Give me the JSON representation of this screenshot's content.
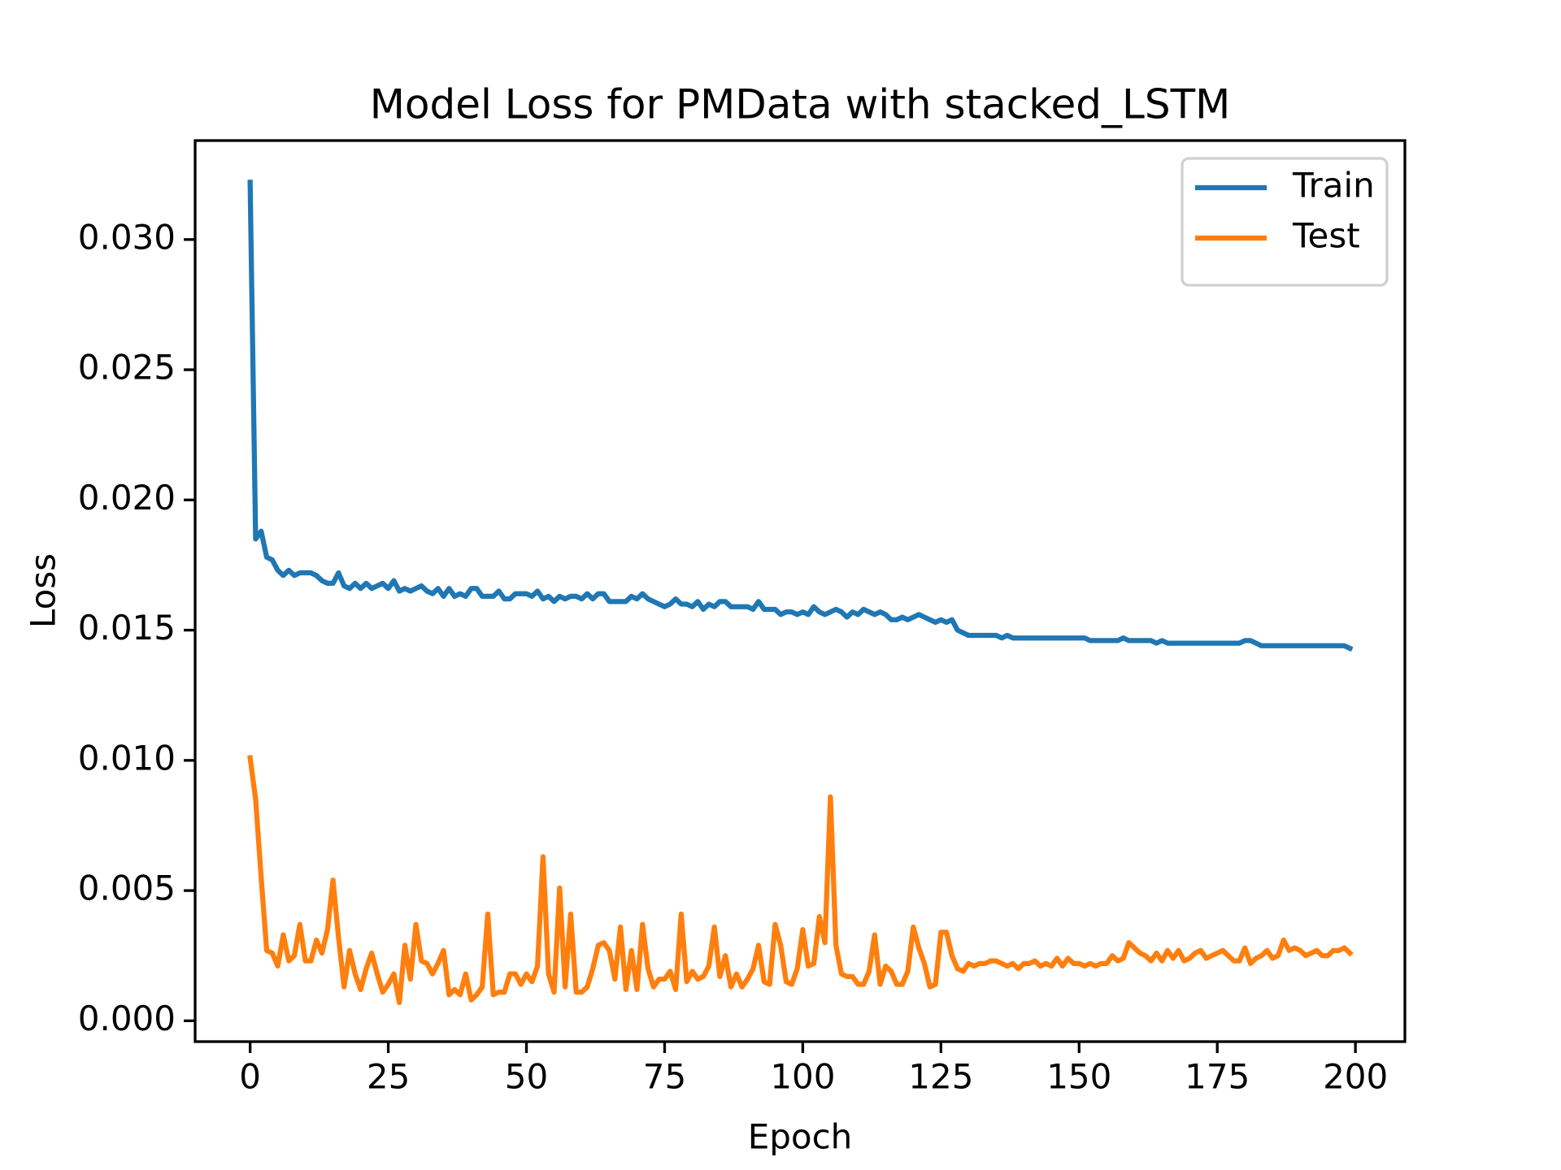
{
  "chart_data": {
    "type": "line",
    "title": "Model Loss for PMData with stacked_LSTM",
    "xlabel": "Epoch",
    "ylabel": "Loss",
    "x": [
      0,
      1,
      2,
      3,
      4,
      5,
      6,
      7,
      8,
      9,
      10,
      11,
      12,
      13,
      14,
      15,
      16,
      17,
      18,
      19,
      20,
      21,
      22,
      23,
      24,
      25,
      26,
      27,
      28,
      29,
      30,
      31,
      32,
      33,
      34,
      35,
      36,
      37,
      38,
      39,
      40,
      41,
      42,
      43,
      44,
      45,
      46,
      47,
      48,
      49,
      50,
      51,
      52,
      53,
      54,
      55,
      56,
      57,
      58,
      59,
      60,
      61,
      62,
      63,
      64,
      65,
      66,
      67,
      68,
      69,
      70,
      71,
      72,
      73,
      74,
      75,
      76,
      77,
      78,
      79,
      80,
      81,
      82,
      83,
      84,
      85,
      86,
      87,
      88,
      89,
      90,
      91,
      92,
      93,
      94,
      95,
      96,
      97,
      98,
      99,
      100,
      101,
      102,
      103,
      104,
      105,
      106,
      107,
      108,
      109,
      110,
      111,
      112,
      113,
      114,
      115,
      116,
      117,
      118,
      119,
      120,
      121,
      122,
      123,
      124,
      125,
      126,
      127,
      128,
      129,
      130,
      131,
      132,
      133,
      134,
      135,
      136,
      137,
      138,
      139,
      140,
      141,
      142,
      143,
      144,
      145,
      146,
      147,
      148,
      149,
      150,
      151,
      152,
      153,
      154,
      155,
      156,
      157,
      158,
      159,
      160,
      161,
      162,
      163,
      164,
      165,
      166,
      167,
      168,
      169,
      170,
      171,
      172,
      173,
      174,
      175,
      176,
      177,
      178,
      179,
      180,
      181,
      182,
      183,
      184,
      185,
      186,
      187,
      188,
      189,
      190,
      191,
      192,
      193,
      194,
      195,
      196,
      197,
      198,
      199
    ],
    "series": [
      {
        "name": "Train",
        "color": "#1f77b4",
        "values": [
          0.0322,
          0.0185,
          0.0188,
          0.0178,
          0.0177,
          0.0173,
          0.0171,
          0.0173,
          0.0171,
          0.0172,
          0.0172,
          0.0172,
          0.0171,
          0.0169,
          0.0168,
          0.0168,
          0.0172,
          0.0167,
          0.0166,
          0.0168,
          0.0166,
          0.0168,
          0.0166,
          0.0167,
          0.0168,
          0.0166,
          0.0169,
          0.0165,
          0.0166,
          0.0165,
          0.0166,
          0.0167,
          0.0165,
          0.0164,
          0.0166,
          0.0163,
          0.0166,
          0.0163,
          0.0164,
          0.0163,
          0.0166,
          0.0166,
          0.0163,
          0.0163,
          0.0163,
          0.0165,
          0.0162,
          0.0162,
          0.0164,
          0.0164,
          0.0164,
          0.0163,
          0.0165,
          0.0162,
          0.0163,
          0.0161,
          0.0163,
          0.0162,
          0.0163,
          0.0163,
          0.0162,
          0.0164,
          0.0162,
          0.0164,
          0.0164,
          0.0161,
          0.0161,
          0.0161,
          0.0161,
          0.0163,
          0.0162,
          0.0164,
          0.0162,
          0.0161,
          0.016,
          0.0159,
          0.016,
          0.0162,
          0.016,
          0.016,
          0.0159,
          0.0161,
          0.0158,
          0.016,
          0.0159,
          0.0161,
          0.0161,
          0.0159,
          0.0159,
          0.0159,
          0.0159,
          0.0158,
          0.0161,
          0.0158,
          0.0158,
          0.0158,
          0.0156,
          0.0157,
          0.0157,
          0.0156,
          0.0157,
          0.0156,
          0.0159,
          0.0157,
          0.0156,
          0.0157,
          0.0158,
          0.0157,
          0.0155,
          0.0157,
          0.0156,
          0.0158,
          0.0157,
          0.0156,
          0.0157,
          0.0156,
          0.0154,
          0.0154,
          0.0155,
          0.0154,
          0.0155,
          0.0156,
          0.0155,
          0.0154,
          0.0153,
          0.0154,
          0.0153,
          0.0154,
          0.015,
          0.0149,
          0.0148,
          0.0148,
          0.0148,
          0.0148,
          0.0148,
          0.0148,
          0.0147,
          0.0148,
          0.0147,
          0.0147,
          0.0147,
          0.0147,
          0.0147,
          0.0147,
          0.0147,
          0.0147,
          0.0147,
          0.0147,
          0.0147,
          0.0147,
          0.0147,
          0.0147,
          0.0146,
          0.0146,
          0.0146,
          0.0146,
          0.0146,
          0.0146,
          0.0147,
          0.0146,
          0.0146,
          0.0146,
          0.0146,
          0.0146,
          0.0145,
          0.0146,
          0.0145,
          0.0145,
          0.0145,
          0.0145,
          0.0145,
          0.0145,
          0.0145,
          0.0145,
          0.0145,
          0.0145,
          0.0145,
          0.0145,
          0.0145,
          0.0145,
          0.0146,
          0.0146,
          0.0145,
          0.0144,
          0.0144,
          0.0144,
          0.0144,
          0.0144,
          0.0144,
          0.0144,
          0.0144,
          0.0144,
          0.0144,
          0.0144,
          0.0144,
          0.0144,
          0.0144,
          0.0144,
          0.0144,
          0.0143
        ]
      },
      {
        "name": "Test",
        "color": "#ff7f0e",
        "values": [
          0.0101,
          0.0085,
          0.0055,
          0.0027,
          0.0026,
          0.0021,
          0.0033,
          0.0023,
          0.0025,
          0.0037,
          0.0023,
          0.0023,
          0.0031,
          0.0026,
          0.0035,
          0.0054,
          0.0032,
          0.0013,
          0.0027,
          0.0018,
          0.0012,
          0.002,
          0.0026,
          0.0018,
          0.0011,
          0.0014,
          0.0018,
          0.0007,
          0.0029,
          0.0016,
          0.0037,
          0.0023,
          0.0022,
          0.0018,
          0.0022,
          0.0027,
          0.001,
          0.0012,
          0.001,
          0.0018,
          0.0008,
          0.001,
          0.0013,
          0.0041,
          0.001,
          0.0011,
          0.0011,
          0.0018,
          0.0018,
          0.0014,
          0.0018,
          0.0015,
          0.0021,
          0.0063,
          0.0018,
          0.0011,
          0.0051,
          0.0013,
          0.0041,
          0.0011,
          0.0011,
          0.0013,
          0.002,
          0.0029,
          0.003,
          0.0027,
          0.0016,
          0.0036,
          0.0012,
          0.0027,
          0.0012,
          0.0037,
          0.002,
          0.0013,
          0.0016,
          0.0016,
          0.0019,
          0.0012,
          0.0041,
          0.0015,
          0.0019,
          0.0016,
          0.0017,
          0.0021,
          0.0036,
          0.0017,
          0.0025,
          0.0013,
          0.0018,
          0.0013,
          0.0016,
          0.002,
          0.0029,
          0.0015,
          0.0014,
          0.0037,
          0.0029,
          0.0015,
          0.0014,
          0.002,
          0.0035,
          0.0021,
          0.0022,
          0.004,
          0.003,
          0.0086,
          0.0029,
          0.0018,
          0.0017,
          0.0017,
          0.0014,
          0.0014,
          0.0019,
          0.0033,
          0.0014,
          0.0021,
          0.0019,
          0.0014,
          0.0014,
          0.0019,
          0.0036,
          0.0028,
          0.0022,
          0.0013,
          0.0014,
          0.0034,
          0.0034,
          0.0025,
          0.002,
          0.0019,
          0.0022,
          0.0021,
          0.0022,
          0.0022,
          0.0023,
          0.0023,
          0.0022,
          0.0021,
          0.0022,
          0.002,
          0.0022,
          0.0022,
          0.0023,
          0.0021,
          0.0022,
          0.0021,
          0.0024,
          0.0021,
          0.0024,
          0.0022,
          0.0022,
          0.0021,
          0.0022,
          0.0021,
          0.0022,
          0.0022,
          0.0025,
          0.0023,
          0.0024,
          0.003,
          0.0028,
          0.0026,
          0.0025,
          0.0023,
          0.0026,
          0.0023,
          0.0027,
          0.0024,
          0.0027,
          0.0023,
          0.0024,
          0.0026,
          0.0027,
          0.0024,
          0.0025,
          0.0026,
          0.0027,
          0.0025,
          0.0023,
          0.0023,
          0.0028,
          0.0022,
          0.0024,
          0.0025,
          0.0027,
          0.0024,
          0.0025,
          0.0031,
          0.0027,
          0.0028,
          0.0027,
          0.0025,
          0.0026,
          0.0027,
          0.0025,
          0.0025,
          0.0027,
          0.0027,
          0.0028,
          0.0026
        ]
      }
    ],
    "xlim": [
      -9.95,
      208.95
    ],
    "xticks": [
      0,
      25,
      50,
      75,
      100,
      125,
      150,
      175,
      200
    ],
    "ylim": [
      -0.0008,
      0.0338
    ],
    "yticks": [
      {
        "value": 0,
        "label": "0.000"
      },
      0.005,
      {
        "value": 0.01,
        "label": "0.010"
      },
      0.015,
      {
        "value": 0.02,
        "label": "0.020"
      },
      0.025,
      {
        "value": 0.03,
        "label": "0.030"
      }
    ],
    "grid": false,
    "legend": "upper right"
  }
}
